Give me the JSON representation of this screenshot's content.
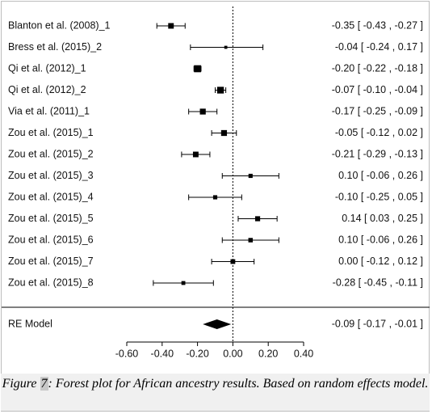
{
  "chart_data": {
    "type": "forest",
    "xlim": [
      -0.6,
      0.4
    ],
    "x_ticks": [
      -0.6,
      -0.4,
      -0.2,
      0.0,
      0.2,
      0.4
    ],
    "x_tick_labels": [
      "-0.60",
      "-0.40",
      "-0.20",
      "0.00",
      "0.20",
      "0.40"
    ],
    "reference_line": 0,
    "studies": [
      {
        "label": "Blanton et al. (2008)_1",
        "est": -0.35,
        "lo": -0.43,
        "hi": -0.27,
        "text": "-0.35 [ -0.43 , -0.27 ]",
        "weight": 0.7
      },
      {
        "label": "Bress et al. (2015)_2",
        "est": -0.04,
        "lo": -0.24,
        "hi": 0.17,
        "text": "-0.04 [ -0.24 , 0.17 ]",
        "weight": 0.25
      },
      {
        "label": "Qi et al. (2012)_1",
        "est": -0.2,
        "lo": -0.22,
        "hi": -0.18,
        "text": "-0.20 [ -0.22 , -0.18 ]",
        "weight": 0.95
      },
      {
        "label": "Qi et al. (2012)_2",
        "est": -0.07,
        "lo": -0.1,
        "hi": -0.04,
        "text": "-0.07 [ -0.10 , -0.04 ]",
        "weight": 0.9
      },
      {
        "label": "Via et al. (2011)_1",
        "est": -0.17,
        "lo": -0.25,
        "hi": -0.09,
        "text": "-0.17 [ -0.25 , -0.09 ]",
        "weight": 0.75
      },
      {
        "label": "Zou et al. (2015)_1",
        "est": -0.05,
        "lo": -0.12,
        "hi": 0.02,
        "text": "-0.05 [ -0.12 , 0.02 ]",
        "weight": 0.75
      },
      {
        "label": "Zou et al. (2015)_2",
        "est": -0.21,
        "lo": -0.29,
        "hi": -0.13,
        "text": "-0.21 [ -0.29 , -0.13 ]",
        "weight": 0.7
      },
      {
        "label": "Zou et al. (2015)_3",
        "est": 0.1,
        "lo": -0.06,
        "hi": 0.26,
        "text": "0.10 [ -0.06 , 0.26 ]",
        "weight": 0.45
      },
      {
        "label": "Zou et al. (2015)_4",
        "est": -0.1,
        "lo": -0.25,
        "hi": 0.05,
        "text": "-0.10 [ -0.25 , 0.05 ]",
        "weight": 0.45
      },
      {
        "label": "Zou et al. (2015)_5",
        "est": 0.14,
        "lo": 0.03,
        "hi": 0.25,
        "text": "0.14 [ 0.03 , 0.25 ]",
        "weight": 0.6
      },
      {
        "label": "Zou et al. (2015)_6",
        "est": 0.1,
        "lo": -0.06,
        "hi": 0.26,
        "text": "0.10 [ -0.06 , 0.26 ]",
        "weight": 0.5
      },
      {
        "label": "Zou et al. (2015)_7",
        "est": 0.0,
        "lo": -0.12,
        "hi": 0.12,
        "text": "0.00 [ -0.12 , 0.12 ]",
        "weight": 0.55
      },
      {
        "label": "Zou et al. (2015)_8",
        "est": -0.28,
        "lo": -0.45,
        "hi": -0.11,
        "text": "-0.28 [ -0.45 , -0.11 ]",
        "weight": 0.4
      }
    ],
    "summary": {
      "label": "RE Model",
      "est": -0.09,
      "lo": -0.17,
      "hi": -0.01,
      "text": "-0.09 [ -0.17 , -0.01 ]"
    }
  },
  "caption": {
    "prefix": "Figure ",
    "number": "7",
    "text": ": Forest plot for African ancestry results. Based on random effects model."
  }
}
